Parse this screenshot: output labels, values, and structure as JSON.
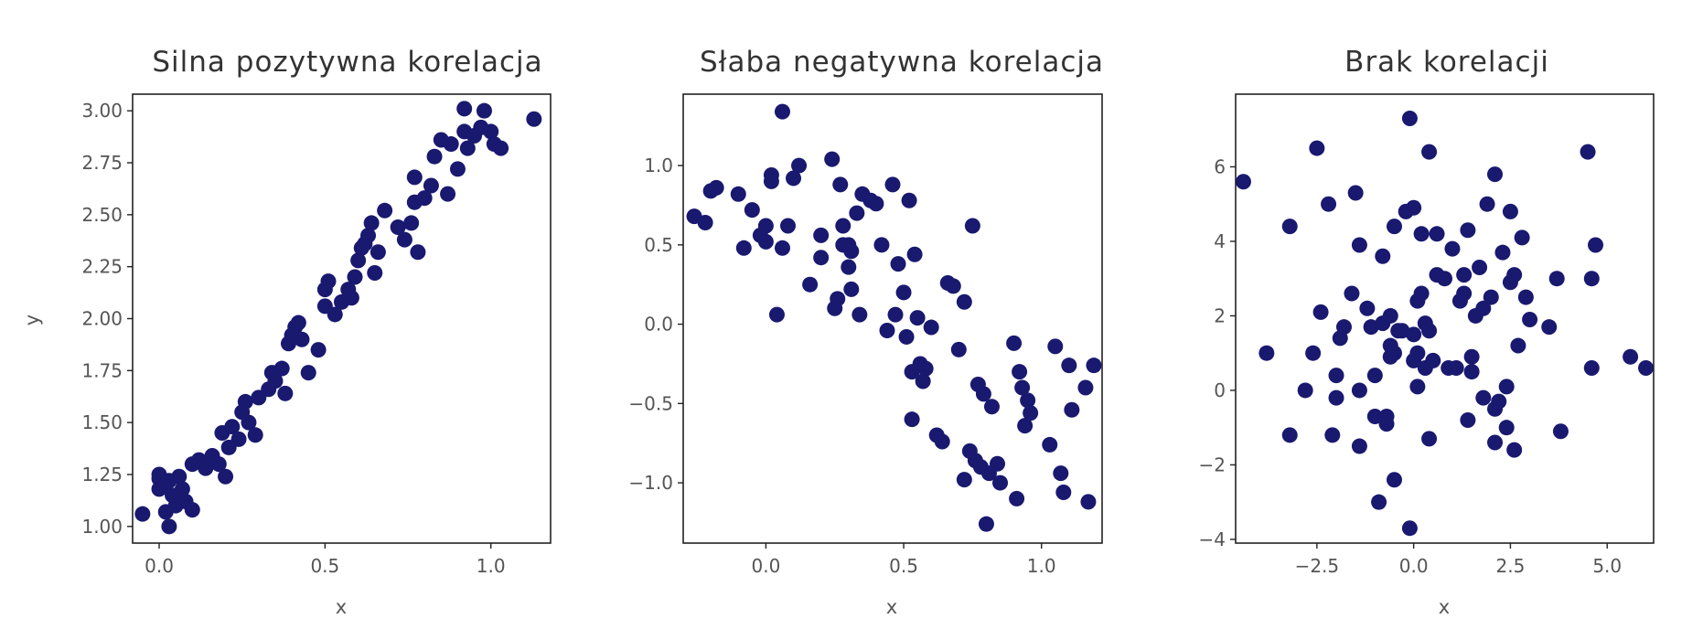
{
  "chart_data": [
    {
      "type": "scatter",
      "title": "Silna pozytywna korelacja",
      "xlabel": "x",
      "ylabel": "y",
      "xlim": [
        -0.08,
        1.18
      ],
      "ylim": [
        0.92,
        3.08
      ],
      "xticks": [
        0.0,
        0.5,
        1.0
      ],
      "xtick_labels": [
        "0.0",
        "0.5",
        "1.0"
      ],
      "yticks": [
        1.0,
        1.25,
        1.5,
        1.75,
        2.0,
        2.25,
        2.5,
        2.75,
        3.0
      ],
      "ytick_labels": [
        "1.00",
        "1.25",
        "1.50",
        "1.75",
        "2.00",
        "2.25",
        "2.50",
        "2.75",
        "3.00"
      ],
      "color": "#191970",
      "points": [
        [
          -0.05,
          1.06
        ],
        [
          0.0,
          1.23
        ],
        [
          0.0,
          1.25
        ],
        [
          0.01,
          1.2
        ],
        [
          0.02,
          1.07
        ],
        [
          0.03,
          1.22
        ],
        [
          0.03,
          1.0
        ],
        [
          0.04,
          1.15
        ],
        [
          0.05,
          1.1
        ],
        [
          0.06,
          1.24
        ],
        [
          0.07,
          1.18
        ],
        [
          0.08,
          1.12
        ],
        [
          0.1,
          1.08
        ],
        [
          0.1,
          1.3
        ],
        [
          0.12,
          1.32
        ],
        [
          0.14,
          1.28
        ],
        [
          0.16,
          1.34
        ],
        [
          0.18,
          1.3
        ],
        [
          0.19,
          1.45
        ],
        [
          0.2,
          1.24
        ],
        [
          0.21,
          1.38
        ],
        [
          0.22,
          1.48
        ],
        [
          0.24,
          1.42
        ],
        [
          0.25,
          1.55
        ],
        [
          0.26,
          1.6
        ],
        [
          0.27,
          1.5
        ],
        [
          0.29,
          1.44
        ],
        [
          0.3,
          1.62
        ],
        [
          0.33,
          1.66
        ],
        [
          0.34,
          1.74
        ],
        [
          0.35,
          1.7
        ],
        [
          0.37,
          1.76
        ],
        [
          0.38,
          1.64
        ],
        [
          0.39,
          1.88
        ],
        [
          0.4,
          1.92
        ],
        [
          0.41,
          1.96
        ],
        [
          0.42,
          1.98
        ],
        [
          0.43,
          1.9
        ],
        [
          0.45,
          1.74
        ],
        [
          0.48,
          1.85
        ],
        [
          0.5,
          2.06
        ],
        [
          0.5,
          2.14
        ],
        [
          0.51,
          2.18
        ],
        [
          0.53,
          2.02
        ],
        [
          0.55,
          2.08
        ],
        [
          0.57,
          2.14
        ],
        [
          0.58,
          2.1
        ],
        [
          0.59,
          2.2
        ],
        [
          0.6,
          2.28
        ],
        [
          0.61,
          2.34
        ],
        [
          0.62,
          2.36
        ],
        [
          0.63,
          2.4
        ],
        [
          0.64,
          2.46
        ],
        [
          0.65,
          2.22
        ],
        [
          0.66,
          2.32
        ],
        [
          0.68,
          2.52
        ],
        [
          0.72,
          2.44
        ],
        [
          0.74,
          2.38
        ],
        [
          0.76,
          2.46
        ],
        [
          0.77,
          2.56
        ],
        [
          0.77,
          2.68
        ],
        [
          0.78,
          2.32
        ],
        [
          0.8,
          2.58
        ],
        [
          0.82,
          2.64
        ],
        [
          0.83,
          2.78
        ],
        [
          0.85,
          2.86
        ],
        [
          0.87,
          2.6
        ],
        [
          0.88,
          2.84
        ],
        [
          0.9,
          2.72
        ],
        [
          0.92,
          2.9
        ],
        [
          0.93,
          2.82
        ],
        [
          0.95,
          2.88
        ],
        [
          0.97,
          2.92
        ],
        [
          0.98,
          3.0
        ],
        [
          1.0,
          2.9
        ],
        [
          1.01,
          2.84
        ],
        [
          1.03,
          2.82
        ],
        [
          1.13,
          2.96
        ],
        [
          0.92,
          3.01
        ],
        [
          0.0,
          1.18
        ]
      ]
    },
    {
      "type": "scatter",
      "title": "Słaba negatywna korelacja",
      "xlabel": "x",
      "ylabel": "",
      "xlim": [
        -0.3,
        1.22
      ],
      "ylim": [
        -1.38,
        1.45
      ],
      "xticks": [
        0.0,
        0.5,
        1.0
      ],
      "xtick_labels": [
        "0.0",
        "0.5",
        "1.0"
      ],
      "yticks": [
        1.0,
        0.5,
        0.0,
        -0.5,
        -1.0
      ],
      "ytick_labels": [
        "1.0",
        "0.5",
        "0.0",
        "−0.5",
        "−1.0"
      ],
      "color": "#191970",
      "points": [
        [
          -0.26,
          0.68
        ],
        [
          -0.22,
          0.64
        ],
        [
          -0.2,
          0.84
        ],
        [
          -0.18,
          0.86
        ],
        [
          -0.1,
          0.82
        ],
        [
          -0.08,
          0.48
        ],
        [
          -0.05,
          0.72
        ],
        [
          -0.02,
          0.56
        ],
        [
          0.0,
          0.52
        ],
        [
          0.02,
          0.9
        ],
        [
          0.02,
          0.94
        ],
        [
          0.04,
          0.06
        ],
        [
          0.06,
          1.34
        ],
        [
          0.06,
          0.48
        ],
        [
          0.08,
          0.62
        ],
        [
          0.1,
          0.92
        ],
        [
          0.12,
          1.0
        ],
        [
          0.16,
          0.25
        ],
        [
          0.2,
          0.42
        ],
        [
          0.2,
          0.56
        ],
        [
          0.24,
          1.04
        ],
        [
          0.25,
          0.1
        ],
        [
          0.26,
          0.16
        ],
        [
          0.27,
          0.88
        ],
        [
          0.28,
          0.5
        ],
        [
          0.28,
          0.62
        ],
        [
          0.3,
          0.36
        ],
        [
          0.31,
          0.22
        ],
        [
          0.31,
          0.46
        ],
        [
          0.33,
          0.7
        ],
        [
          0.34,
          0.06
        ],
        [
          0.35,
          0.82
        ],
        [
          0.38,
          0.78
        ],
        [
          0.4,
          0.76
        ],
        [
          0.42,
          0.5
        ],
        [
          0.44,
          -0.04
        ],
        [
          0.46,
          0.88
        ],
        [
          0.47,
          0.06
        ],
        [
          0.48,
          0.38
        ],
        [
          0.5,
          0.2
        ],
        [
          0.51,
          -0.08
        ],
        [
          0.52,
          0.78
        ],
        [
          0.53,
          -0.3
        ],
        [
          0.53,
          -0.6
        ],
        [
          0.54,
          0.44
        ],
        [
          0.55,
          0.04
        ],
        [
          0.56,
          -0.25
        ],
        [
          0.57,
          -0.36
        ],
        [
          0.58,
          -0.28
        ],
        [
          0.6,
          -0.02
        ],
        [
          0.62,
          -0.7
        ],
        [
          0.64,
          -0.74
        ],
        [
          0.66,
          0.26
        ],
        [
          0.68,
          0.24
        ],
        [
          0.7,
          -0.16
        ],
        [
          0.72,
          0.14
        ],
        [
          0.72,
          -0.98
        ],
        [
          0.74,
          -0.8
        ],
        [
          0.75,
          0.62
        ],
        [
          0.76,
          -0.86
        ],
        [
          0.77,
          -0.38
        ],
        [
          0.78,
          -0.9
        ],
        [
          0.79,
          -0.44
        ],
        [
          0.8,
          -1.26
        ],
        [
          0.81,
          -0.94
        ],
        [
          0.82,
          -0.52
        ],
        [
          0.84,
          -0.88
        ],
        [
          0.85,
          -1.0
        ],
        [
          0.9,
          -0.12
        ],
        [
          0.91,
          -1.1
        ],
        [
          0.92,
          -0.3
        ],
        [
          0.93,
          -0.4
        ],
        [
          0.94,
          -0.64
        ],
        [
          0.95,
          -0.48
        ],
        [
          0.96,
          -0.56
        ],
        [
          1.03,
          -0.76
        ],
        [
          1.05,
          -0.14
        ],
        [
          1.07,
          -0.94
        ],
        [
          1.08,
          -1.06
        ],
        [
          1.1,
          -0.26
        ],
        [
          1.11,
          -0.54
        ],
        [
          1.16,
          -0.4
        ],
        [
          1.19,
          -0.26
        ],
        [
          1.17,
          -1.12
        ],
        [
          0.0,
          0.62
        ],
        [
          0.3,
          0.5
        ]
      ]
    },
    {
      "type": "scatter",
      "title": "Brak korelacji",
      "xlabel": "x",
      "ylabel": "",
      "xlim": [
        -4.6,
        6.2
      ],
      "ylim": [
        -4.1,
        7.95
      ],
      "xticks": [
        -2.5,
        0.0,
        2.5,
        5.0
      ],
      "xtick_labels": [
        "−2.5",
        "0.0",
        "2.5",
        "5.0"
      ],
      "yticks": [
        6,
        4,
        2,
        0,
        -2,
        -4
      ],
      "ytick_labels": [
        "6",
        "4",
        "2",
        "0",
        "−2",
        "−4"
      ],
      "color": "#191970",
      "points": [
        [
          -4.4,
          5.6
        ],
        [
          -3.8,
          1.0
        ],
        [
          -3.2,
          4.4
        ],
        [
          -3.2,
          -1.2
        ],
        [
          -2.8,
          0.0
        ],
        [
          -2.6,
          1.0
        ],
        [
          -2.5,
          6.5
        ],
        [
          -2.4,
          2.1
        ],
        [
          -2.2,
          5.0
        ],
        [
          -2.1,
          -1.2
        ],
        [
          -2.0,
          -0.2
        ],
        [
          -2.0,
          0.4
        ],
        [
          -1.9,
          1.4
        ],
        [
          -1.8,
          1.7
        ],
        [
          -1.6,
          2.6
        ],
        [
          -1.5,
          5.3
        ],
        [
          -1.4,
          3.9
        ],
        [
          -1.4,
          -1.5
        ],
        [
          -1.4,
          0.0
        ],
        [
          -1.2,
          2.2
        ],
        [
          -1.1,
          1.7
        ],
        [
          -1.0,
          0.4
        ],
        [
          -1.0,
          -0.7
        ],
        [
          -0.9,
          -3.0
        ],
        [
          -0.8,
          3.6
        ],
        [
          -0.8,
          1.8
        ],
        [
          -0.7,
          -0.7
        ],
        [
          -0.7,
          -0.9
        ],
        [
          -0.6,
          2.0
        ],
        [
          -0.6,
          1.2
        ],
        [
          -0.5,
          4.4
        ],
        [
          -0.5,
          1.0
        ],
        [
          -0.5,
          -2.4
        ],
        [
          -0.4,
          1.6
        ],
        [
          -0.3,
          1.6
        ],
        [
          -0.2,
          4.8
        ],
        [
          -0.1,
          7.3
        ],
        [
          -0.1,
          -3.7
        ],
        [
          0.0,
          4.9
        ],
        [
          0.0,
          1.5
        ],
        [
          0.0,
          0.8
        ],
        [
          0.1,
          0.1
        ],
        [
          0.1,
          1.0
        ],
        [
          0.1,
          2.4
        ],
        [
          0.2,
          4.2
        ],
        [
          0.2,
          2.6
        ],
        [
          0.3,
          1.8
        ],
        [
          0.3,
          0.6
        ],
        [
          0.4,
          6.4
        ],
        [
          0.4,
          1.6
        ],
        [
          0.4,
          -1.3
        ],
        [
          0.5,
          0.8
        ],
        [
          0.6,
          3.1
        ],
        [
          0.6,
          4.2
        ],
        [
          0.8,
          3.0
        ],
        [
          0.9,
          0.6
        ],
        [
          1.0,
          3.8
        ],
        [
          1.1,
          0.6
        ],
        [
          1.2,
          2.4
        ],
        [
          1.3,
          2.6
        ],
        [
          1.3,
          3.1
        ],
        [
          1.4,
          -0.8
        ],
        [
          1.4,
          4.3
        ],
        [
          1.5,
          0.5
        ],
        [
          1.5,
          0.9
        ],
        [
          1.6,
          2.0
        ],
        [
          1.7,
          3.3
        ],
        [
          1.8,
          2.2
        ],
        [
          1.8,
          -0.2
        ],
        [
          1.9,
          5.0
        ],
        [
          2.0,
          2.5
        ],
        [
          2.1,
          5.8
        ],
        [
          2.1,
          -0.5
        ],
        [
          2.1,
          -1.4
        ],
        [
          2.2,
          -0.3
        ],
        [
          2.3,
          3.7
        ],
        [
          2.4,
          -1.0
        ],
        [
          2.4,
          0.1
        ],
        [
          2.5,
          2.9
        ],
        [
          2.5,
          4.8
        ],
        [
          2.6,
          3.1
        ],
        [
          2.6,
          -1.6
        ],
        [
          2.7,
          1.2
        ],
        [
          2.8,
          4.1
        ],
        [
          2.9,
          2.5
        ],
        [
          3.0,
          1.9
        ],
        [
          3.5,
          1.7
        ],
        [
          3.7,
          3.0
        ],
        [
          3.8,
          -1.1
        ],
        [
          4.5,
          6.4
        ],
        [
          4.6,
          0.6
        ],
        [
          4.6,
          3.0
        ],
        [
          4.7,
          3.9
        ],
        [
          5.6,
          0.9
        ],
        [
          6.0,
          0.6
        ],
        [
          -0.6,
          0.9
        ]
      ]
    }
  ]
}
